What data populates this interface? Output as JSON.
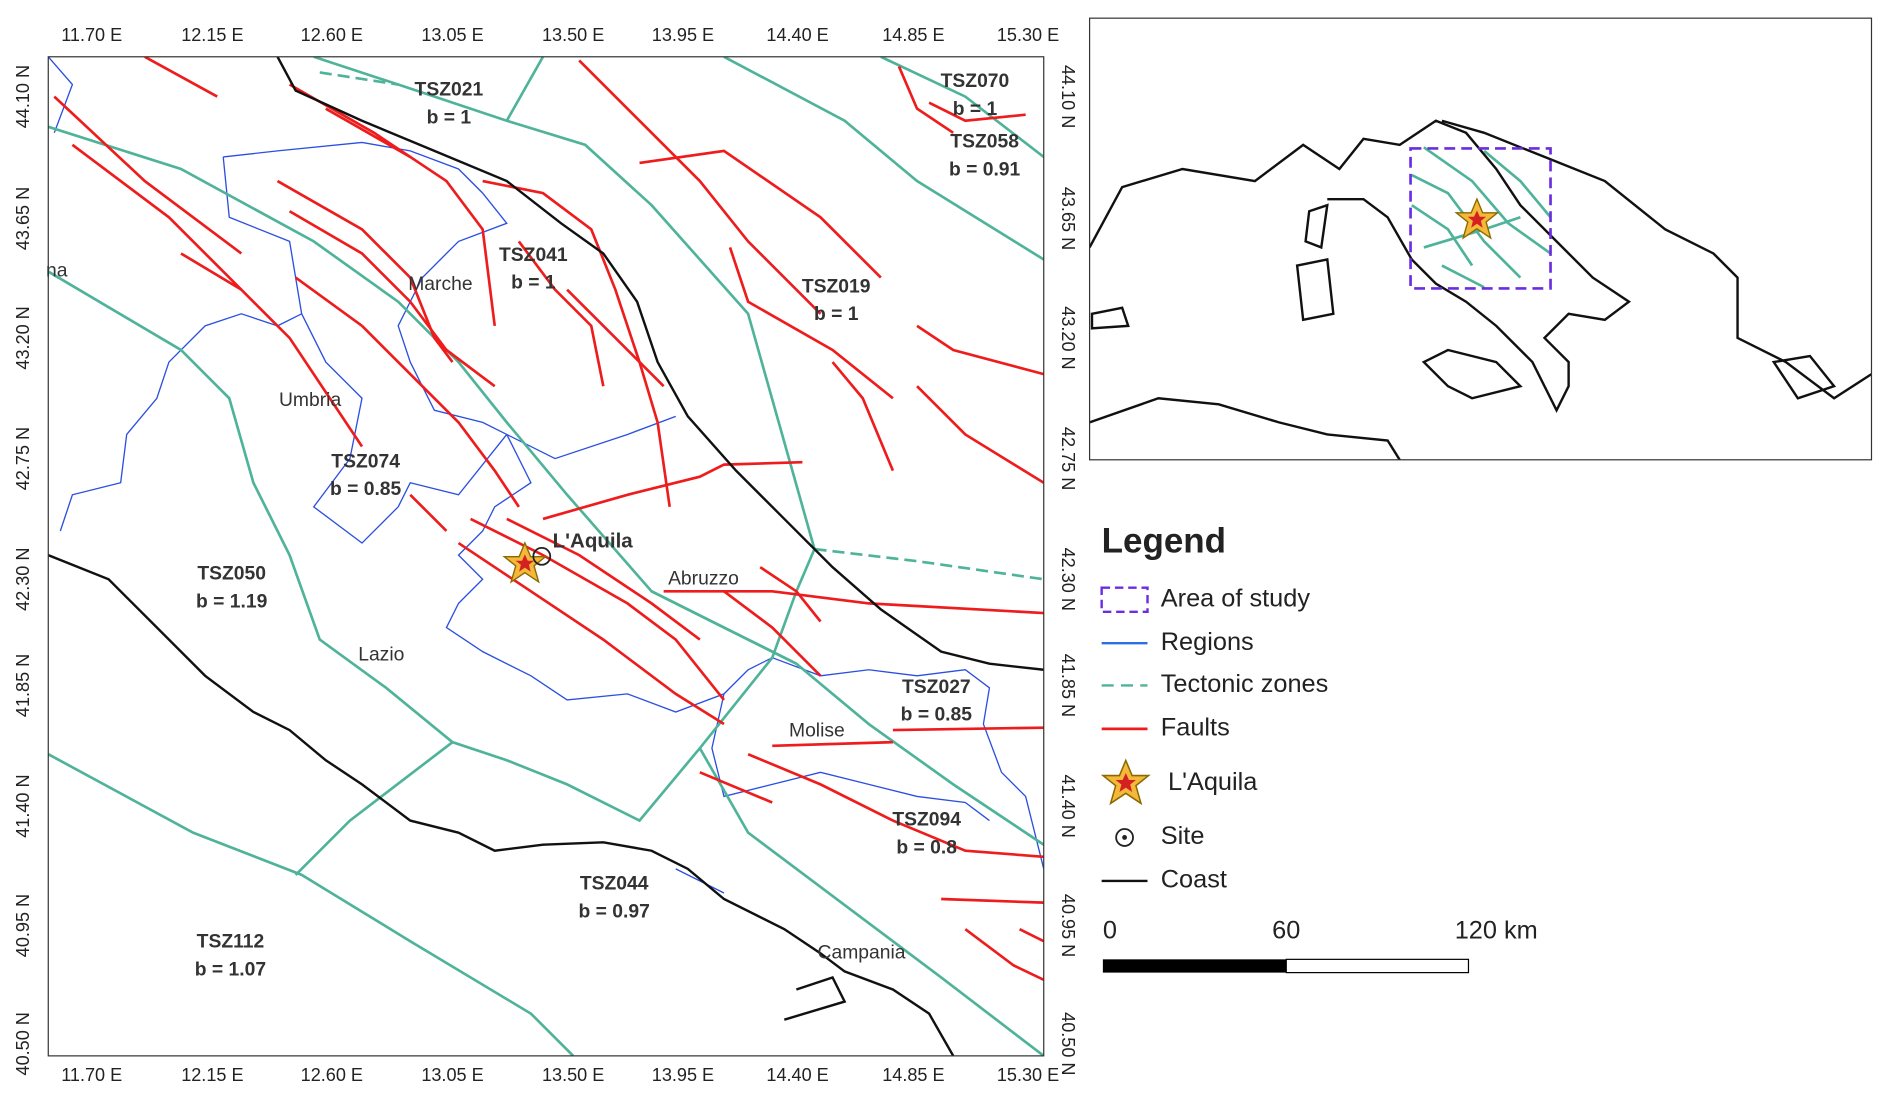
{
  "map": {
    "lon_labels": [
      "11.70 E",
      "12.15 E",
      "12.60 E",
      "13.05 E",
      "13.50 E",
      "13.95 E",
      "14.40 E",
      "14.85 E",
      "15.30 E"
    ],
    "lat_labels": [
      "44.10 N",
      "43.65 N",
      "43.20 N",
      "42.75 N",
      "42.30 N",
      "41.85 N",
      "41.40 N",
      "40.95 N",
      "40.50 N"
    ],
    "zones": [
      {
        "name": "TSZ021",
        "b": "b = 1"
      },
      {
        "name": "TSZ070",
        "b": "b = 1"
      },
      {
        "name": "TSZ058",
        "b": "b = 0.91"
      },
      {
        "name": "TSZ041",
        "b": "b = 1"
      },
      {
        "name": "TSZ019",
        "b": "b = 1"
      },
      {
        "name": "TSZ074",
        "b": "b = 0.85"
      },
      {
        "name": "TSZ050",
        "b": "b = 1.19"
      },
      {
        "name": "TSZ027",
        "b": "b = 0.85"
      },
      {
        "name": "TSZ094",
        "b": "b = 0.8"
      },
      {
        "name": "TSZ044",
        "b": "b = 0.97"
      },
      {
        "name": "TSZ112",
        "b": "b = 1.07"
      }
    ],
    "regions": [
      "na",
      "Marche",
      "Umbria",
      "Lazio",
      "Abruzzo",
      "Molise",
      "Campania"
    ],
    "site_label": "L'Aquila",
    "legend": {
      "title": "Legend",
      "items": [
        "Area of study",
        "Regions",
        "Tectonic zones",
        "Faults",
        "L'Aquila",
        "Site",
        "Coast"
      ]
    },
    "scale": {
      "labels": [
        "0",
        "60",
        "120 km"
      ]
    }
  }
}
